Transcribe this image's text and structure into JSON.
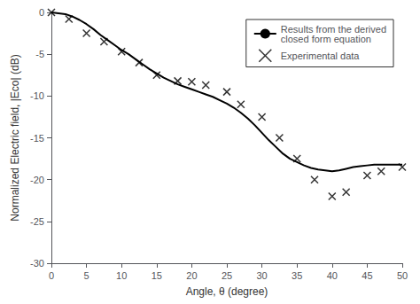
{
  "chart_data": {
    "type": "line",
    "xlabel": "Angle, θ (degree)",
    "ylabel": "Normalized Electric field, |Eco| (dB)",
    "xlim": [
      0,
      50
    ],
    "ylim": [
      -30,
      0
    ],
    "xticks": [
      0,
      5,
      10,
      15,
      20,
      25,
      30,
      35,
      40,
      45,
      50
    ],
    "yticks": [
      0,
      -5,
      -10,
      -15,
      -20,
      -25,
      -30
    ],
    "grid": false,
    "legend": "upper right",
    "series": [
      {
        "name": "Results from the derived\nclosed form equation",
        "type": "line",
        "color": "black",
        "line_style": "solid",
        "x": [
          0,
          1,
          2,
          3,
          4,
          5,
          6,
          7,
          8,
          9,
          10,
          11,
          12,
          13,
          14,
          15,
          16,
          17,
          18,
          19,
          20,
          21,
          22,
          23,
          24,
          25,
          26,
          27,
          28,
          29,
          30,
          31,
          32,
          33,
          34,
          35,
          36,
          37,
          38,
          39,
          40,
          41,
          42,
          43,
          44,
          45,
          46,
          47,
          48,
          49,
          50
        ],
        "values": [
          0,
          -0.1,
          -0.2,
          -0.5,
          -0.9,
          -1.4,
          -2.0,
          -2.7,
          -3.3,
          -3.9,
          -4.5,
          -5.0,
          -5.6,
          -6.2,
          -6.8,
          -7.3,
          -7.8,
          -8.2,
          -8.6,
          -8.9,
          -9.2,
          -9.5,
          -9.8,
          -10.1,
          -10.5,
          -10.9,
          -11.4,
          -12.0,
          -12.7,
          -13.5,
          -14.4,
          -15.3,
          -16.1,
          -16.9,
          -17.5,
          -17.9,
          -18.3,
          -18.6,
          -18.8,
          -18.9,
          -19.0,
          -18.9,
          -18.7,
          -18.5,
          -18.4,
          -18.3,
          -18.2,
          -18.2,
          -18.2,
          -18.2,
          -18.2
        ]
      },
      {
        "name": "Experimental data",
        "type": "scatter",
        "color": "black",
        "marker": "x",
        "x": [
          0,
          2.5,
          5,
          7.5,
          10,
          12.5,
          15,
          18,
          20,
          22,
          25,
          27,
          30,
          32.5,
          35,
          37.5,
          40,
          42,
          45,
          47,
          50
        ],
        "values": [
          0,
          -0.8,
          -2.5,
          -3.5,
          -4.7,
          -6.0,
          -7.5,
          -8.2,
          -8.3,
          -8.7,
          -9.5,
          -11.0,
          -12.5,
          -15.0,
          -17.5,
          -20.0,
          -22.0,
          -21.5,
          -19.5,
          -19.0,
          -18.5
        ]
      }
    ]
  }
}
